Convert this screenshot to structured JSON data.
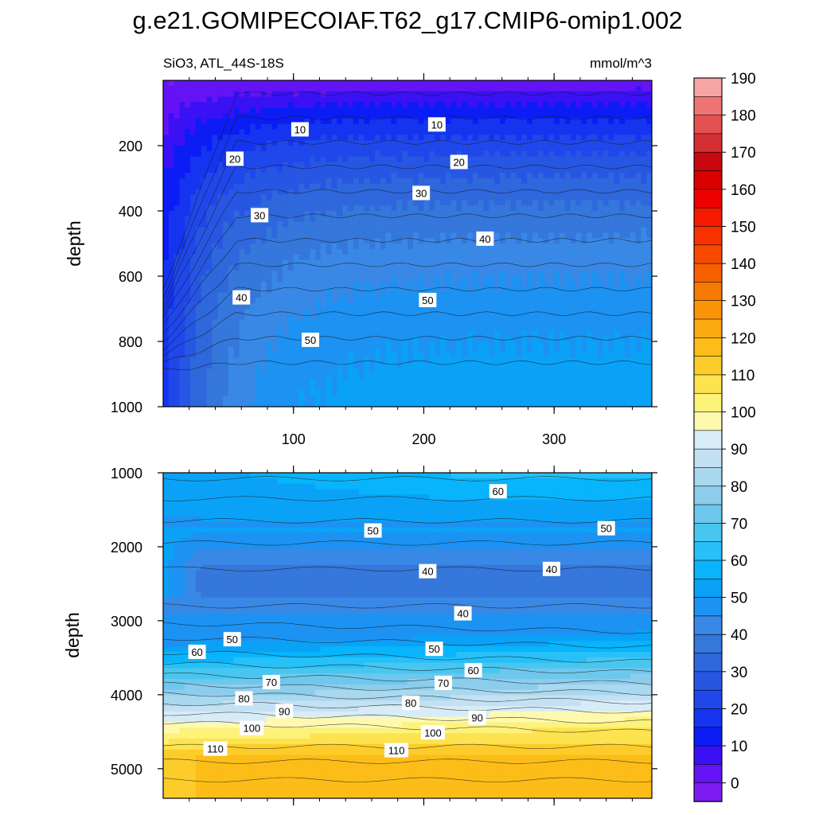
{
  "chart_data": {
    "type": "contour",
    "title": "g.e21.GOMIPECOIAF.T62_g17.CMIP6-omip1.002",
    "subtitle_left": "SiO3, ATL_44S-18S",
    "subtitle_right": "mmol/m^3",
    "colorbar": {
      "levels": [
        0,
        10,
        20,
        30,
        40,
        50,
        60,
        70,
        80,
        90,
        100,
        110,
        120,
        130,
        140,
        150,
        160,
        170,
        180,
        190
      ],
      "tick_labels": [
        "0",
        "10",
        "20",
        "30",
        "40",
        "50",
        "60",
        "70",
        "80",
        "90",
        "100",
        "110",
        "120",
        "130",
        "140",
        "150",
        "160",
        "170",
        "180",
        "190"
      ],
      "colors": [
        "#7d1cf0",
        "#6413f5",
        "#3a10f5",
        "#0b1cf5",
        "#1534f0",
        "#1f47ea",
        "#2757e2",
        "#2f67dc",
        "#3577da",
        "#3988e6",
        "#1c92f2",
        "#0aa2f7",
        "#08b4fb",
        "#27c0f8",
        "#48c6f0",
        "#6ec7ec",
        "#8dcdec",
        "#a9d8ef",
        "#c3e1f3",
        "#d8ecf8",
        "#fff9b0",
        "#fdf27a",
        "#fde350",
        "#fccd2a",
        "#fcbd18",
        "#fbaa12",
        "#f99408",
        "#f77a02",
        "#f66000",
        "#f74a00",
        "#f73200",
        "#f51a00",
        "#ef0000",
        "#da0000",
        "#c80810",
        "#d43033",
        "#e55050",
        "#ee7474",
        "#f6a4a4"
      ]
    },
    "top_panel": {
      "xlabel": "",
      "ylabel": "depth",
      "xticks": [
        100,
        200,
        300
      ],
      "yticks": [
        200,
        400,
        600,
        800,
        1000
      ],
      "xlim": [
        0,
        375
      ],
      "ylim": [
        0,
        1000
      ],
      "contour_labels": [
        {
          "text": "10",
          "x": 105,
          "y": 150
        },
        {
          "text": "10",
          "x": 210,
          "y": 135
        },
        {
          "text": "20",
          "x": 55,
          "y": 240
        },
        {
          "text": "20",
          "x": 227,
          "y": 250
        },
        {
          "text": "30",
          "x": 74,
          "y": 413
        },
        {
          "text": "30",
          "x": 198,
          "y": 345
        },
        {
          "text": "40",
          "x": 60,
          "y": 665
        },
        {
          "text": "40",
          "x": 247,
          "y": 485
        },
        {
          "text": "50",
          "x": 113,
          "y": 795
        },
        {
          "text": "50",
          "x": 203,
          "y": 673
        }
      ]
    },
    "bottom_panel": {
      "xlabel": "",
      "ylabel": "depth",
      "xticks": [
        100,
        200,
        300
      ],
      "yticks": [
        1000,
        2000,
        3000,
        4000,
        5000
      ],
      "xlim": [
        0,
        375
      ],
      "ylim": [
        1000,
        5400
      ],
      "contour_labels": [
        {
          "text": "60",
          "x": 257,
          "y": 1250
        },
        {
          "text": "50",
          "x": 161,
          "y": 1780
        },
        {
          "text": "50",
          "x": 340,
          "y": 1750
        },
        {
          "text": "40",
          "x": 203,
          "y": 2330
        },
        {
          "text": "40",
          "x": 298,
          "y": 2300
        },
        {
          "text": "40",
          "x": 230,
          "y": 2900
        },
        {
          "text": "50",
          "x": 53,
          "y": 3250
        },
        {
          "text": "60",
          "x": 26,
          "y": 3420
        },
        {
          "text": "50",
          "x": 208,
          "y": 3380
        },
        {
          "text": "60",
          "x": 238,
          "y": 3670
        },
        {
          "text": "70",
          "x": 83,
          "y": 3830
        },
        {
          "text": "70",
          "x": 215,
          "y": 3840
        },
        {
          "text": "80",
          "x": 62,
          "y": 4050
        },
        {
          "text": "80",
          "x": 190,
          "y": 4110
        },
        {
          "text": "90",
          "x": 93,
          "y": 4220
        },
        {
          "text": "90",
          "x": 241,
          "y": 4310
        },
        {
          "text": "100",
          "x": 68,
          "y": 4450
        },
        {
          "text": "100",
          "x": 207,
          "y": 4510
        },
        {
          "text": "110",
          "x": 40,
          "y": 4730
        },
        {
          "text": "110",
          "x": 179,
          "y": 4750
        }
      ]
    }
  }
}
